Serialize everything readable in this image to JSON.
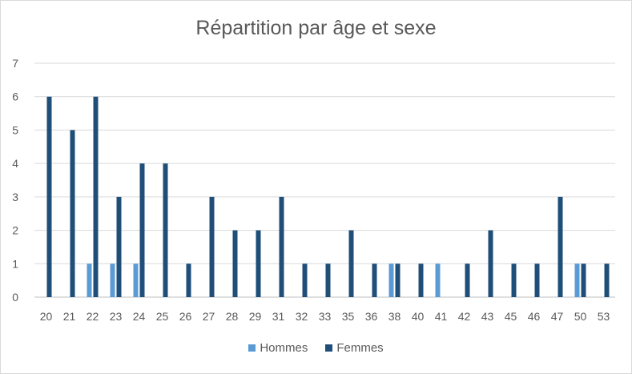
{
  "chart_data": {
    "type": "bar",
    "title": "Répartition par âge et sexe",
    "xlabel": "",
    "ylabel": "",
    "ylim": [
      0,
      7
    ],
    "yticks": [
      0,
      1,
      2,
      3,
      4,
      5,
      6,
      7
    ],
    "grid": true,
    "legend_position": "bottom",
    "categories": [
      "20",
      "21",
      "22",
      "23",
      "24",
      "25",
      "26",
      "27",
      "28",
      "29",
      "31",
      "32",
      "33",
      "35",
      "36",
      "38",
      "40",
      "41",
      "42",
      "43",
      "45",
      "46",
      "47",
      "50",
      "53"
    ],
    "series": [
      {
        "name": "Hommes",
        "color": "#5b9bd5",
        "values": [
          0,
          0,
          1,
          1,
          1,
          0,
          0,
          0,
          0,
          0,
          0,
          0,
          0,
          0,
          0,
          1,
          0,
          1,
          0,
          0,
          0,
          0,
          0,
          1,
          0
        ]
      },
      {
        "name": "Femmes",
        "color": "#1f4e79",
        "values": [
          6,
          5,
          6,
          3,
          4,
          4,
          1,
          3,
          2,
          2,
          3,
          1,
          1,
          2,
          1,
          1,
          1,
          0,
          1,
          2,
          1,
          1,
          3,
          1,
          1
        ]
      }
    ]
  }
}
